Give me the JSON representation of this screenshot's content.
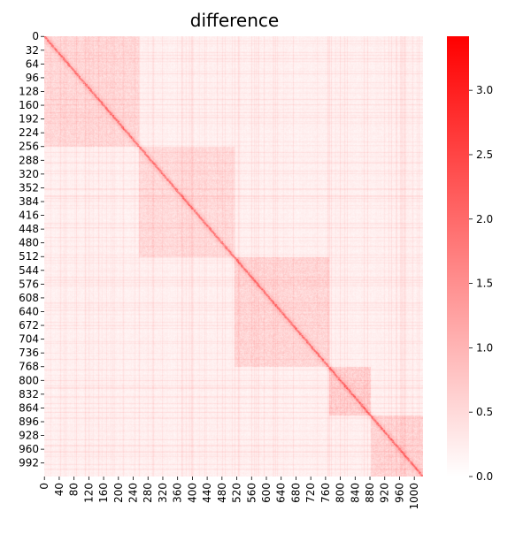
{
  "chart_data": {
    "type": "heatmap",
    "title": "difference",
    "xlabel": "",
    "ylabel": "",
    "matrix_size": [
      1024,
      1024
    ],
    "x_tick_labels": [
      "0",
      "40",
      "80",
      "120",
      "160",
      "200",
      "240",
      "280",
      "320",
      "360",
      "400",
      "440",
      "480",
      "520",
      "560",
      "600",
      "640",
      "680",
      "720",
      "760",
      "800",
      "840",
      "880",
      "920",
      "960",
      "1000"
    ],
    "y_tick_labels": [
      "0",
      "32",
      "64",
      "96",
      "128",
      "160",
      "192",
      "224",
      "256",
      "288",
      "320",
      "352",
      "384",
      "416",
      "448",
      "480",
      "512",
      "544",
      "576",
      "608",
      "640",
      "672",
      "704",
      "736",
      "768",
      "800",
      "832",
      "864",
      "896",
      "928",
      "960",
      "992"
    ],
    "colorbar": {
      "min": 0.0,
      "max": 3.42,
      "ticks": [
        "0.0",
        "0.5",
        "1.0",
        "1.5",
        "2.0",
        "2.5",
        "3.0"
      ],
      "low_color": "#ffffff",
      "high_color": "#ff0000"
    },
    "block_structure": [
      {
        "rows": [
          0,
          255
        ],
        "mean_intensity": 0.32
      },
      {
        "rows": [
          256,
          512
        ],
        "mean_intensity": 0.28
      },
      {
        "rows": [
          513,
          768
        ],
        "mean_intensity": 0.34
      },
      {
        "rows": [
          769,
          880
        ],
        "mean_intensity": 0.42
      },
      {
        "rows": [
          881,
          1023
        ],
        "mean_intensity": 0.36
      }
    ],
    "diagonal_intensity": 1.4,
    "background_intensity": 0.08
  }
}
